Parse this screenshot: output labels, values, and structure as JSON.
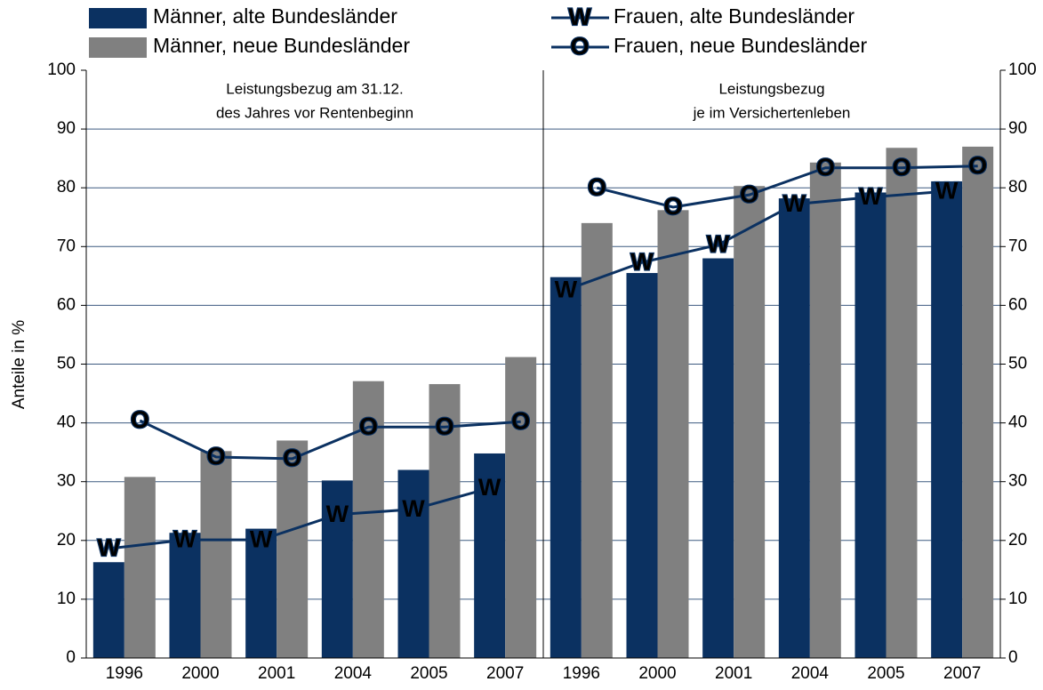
{
  "chart_data": {
    "type": "bar",
    "ylabel": "Anteile in %",
    "categories": [
      "1996",
      "2000",
      "2001",
      "2004",
      "2005",
      "2007",
      "1996",
      "2000",
      "2001",
      "2004",
      "2005",
      "2007"
    ],
    "panels": [
      {
        "title": [
          "Leistungsbezug am 31.12.",
          "des Jahres vor Rentenbeginn"
        ]
      },
      {
        "title": [
          "Leistungsbezug",
          "je im Versichertenleben"
        ]
      }
    ],
    "series": [
      {
        "name": "Männer, alte Bundesländer",
        "type": "bar",
        "color": "#0b3161",
        "values": [
          16.3,
          21.3,
          22,
          30.2,
          32,
          34.8,
          64.8,
          65.5,
          68,
          78.2,
          79.2,
          81.1
        ]
      },
      {
        "name": "Männer, neue Bundesländer",
        "type": "bar",
        "color": "#808080",
        "values": [
          30.8,
          35.2,
          37,
          47.1,
          46.6,
          51.2,
          74,
          76.2,
          80.3,
          84.3,
          86.8,
          87
        ]
      },
      {
        "name": "Frauen, alte Bundesländer",
        "type": "line",
        "color": "#0b3161",
        "marker": "W",
        "values": [
          18.6,
          20.1,
          20.1,
          24.4,
          25.3,
          28.9,
          62.6,
          67.3,
          70.3,
          77.2,
          78.4,
          79.4
        ]
      },
      {
        "name": "Frauen, neue Bundesländer",
        "type": "line",
        "color": "#0b3161",
        "marker": "O",
        "values": [
          40.4,
          34.2,
          33.9,
          39.3,
          39.3,
          40.2,
          80,
          76.7,
          78.8,
          83.4,
          83.4,
          83.7
        ]
      }
    ],
    "ylim": [
      0,
      100
    ],
    "yticks": [
      0,
      10,
      20,
      30,
      40,
      50,
      60,
      70,
      80,
      90,
      100
    ],
    "y2lim": [
      0,
      100
    ],
    "y2ticks": [
      0,
      10,
      20,
      30,
      40,
      50,
      60,
      70,
      80,
      90,
      100
    ],
    "grid": true
  }
}
